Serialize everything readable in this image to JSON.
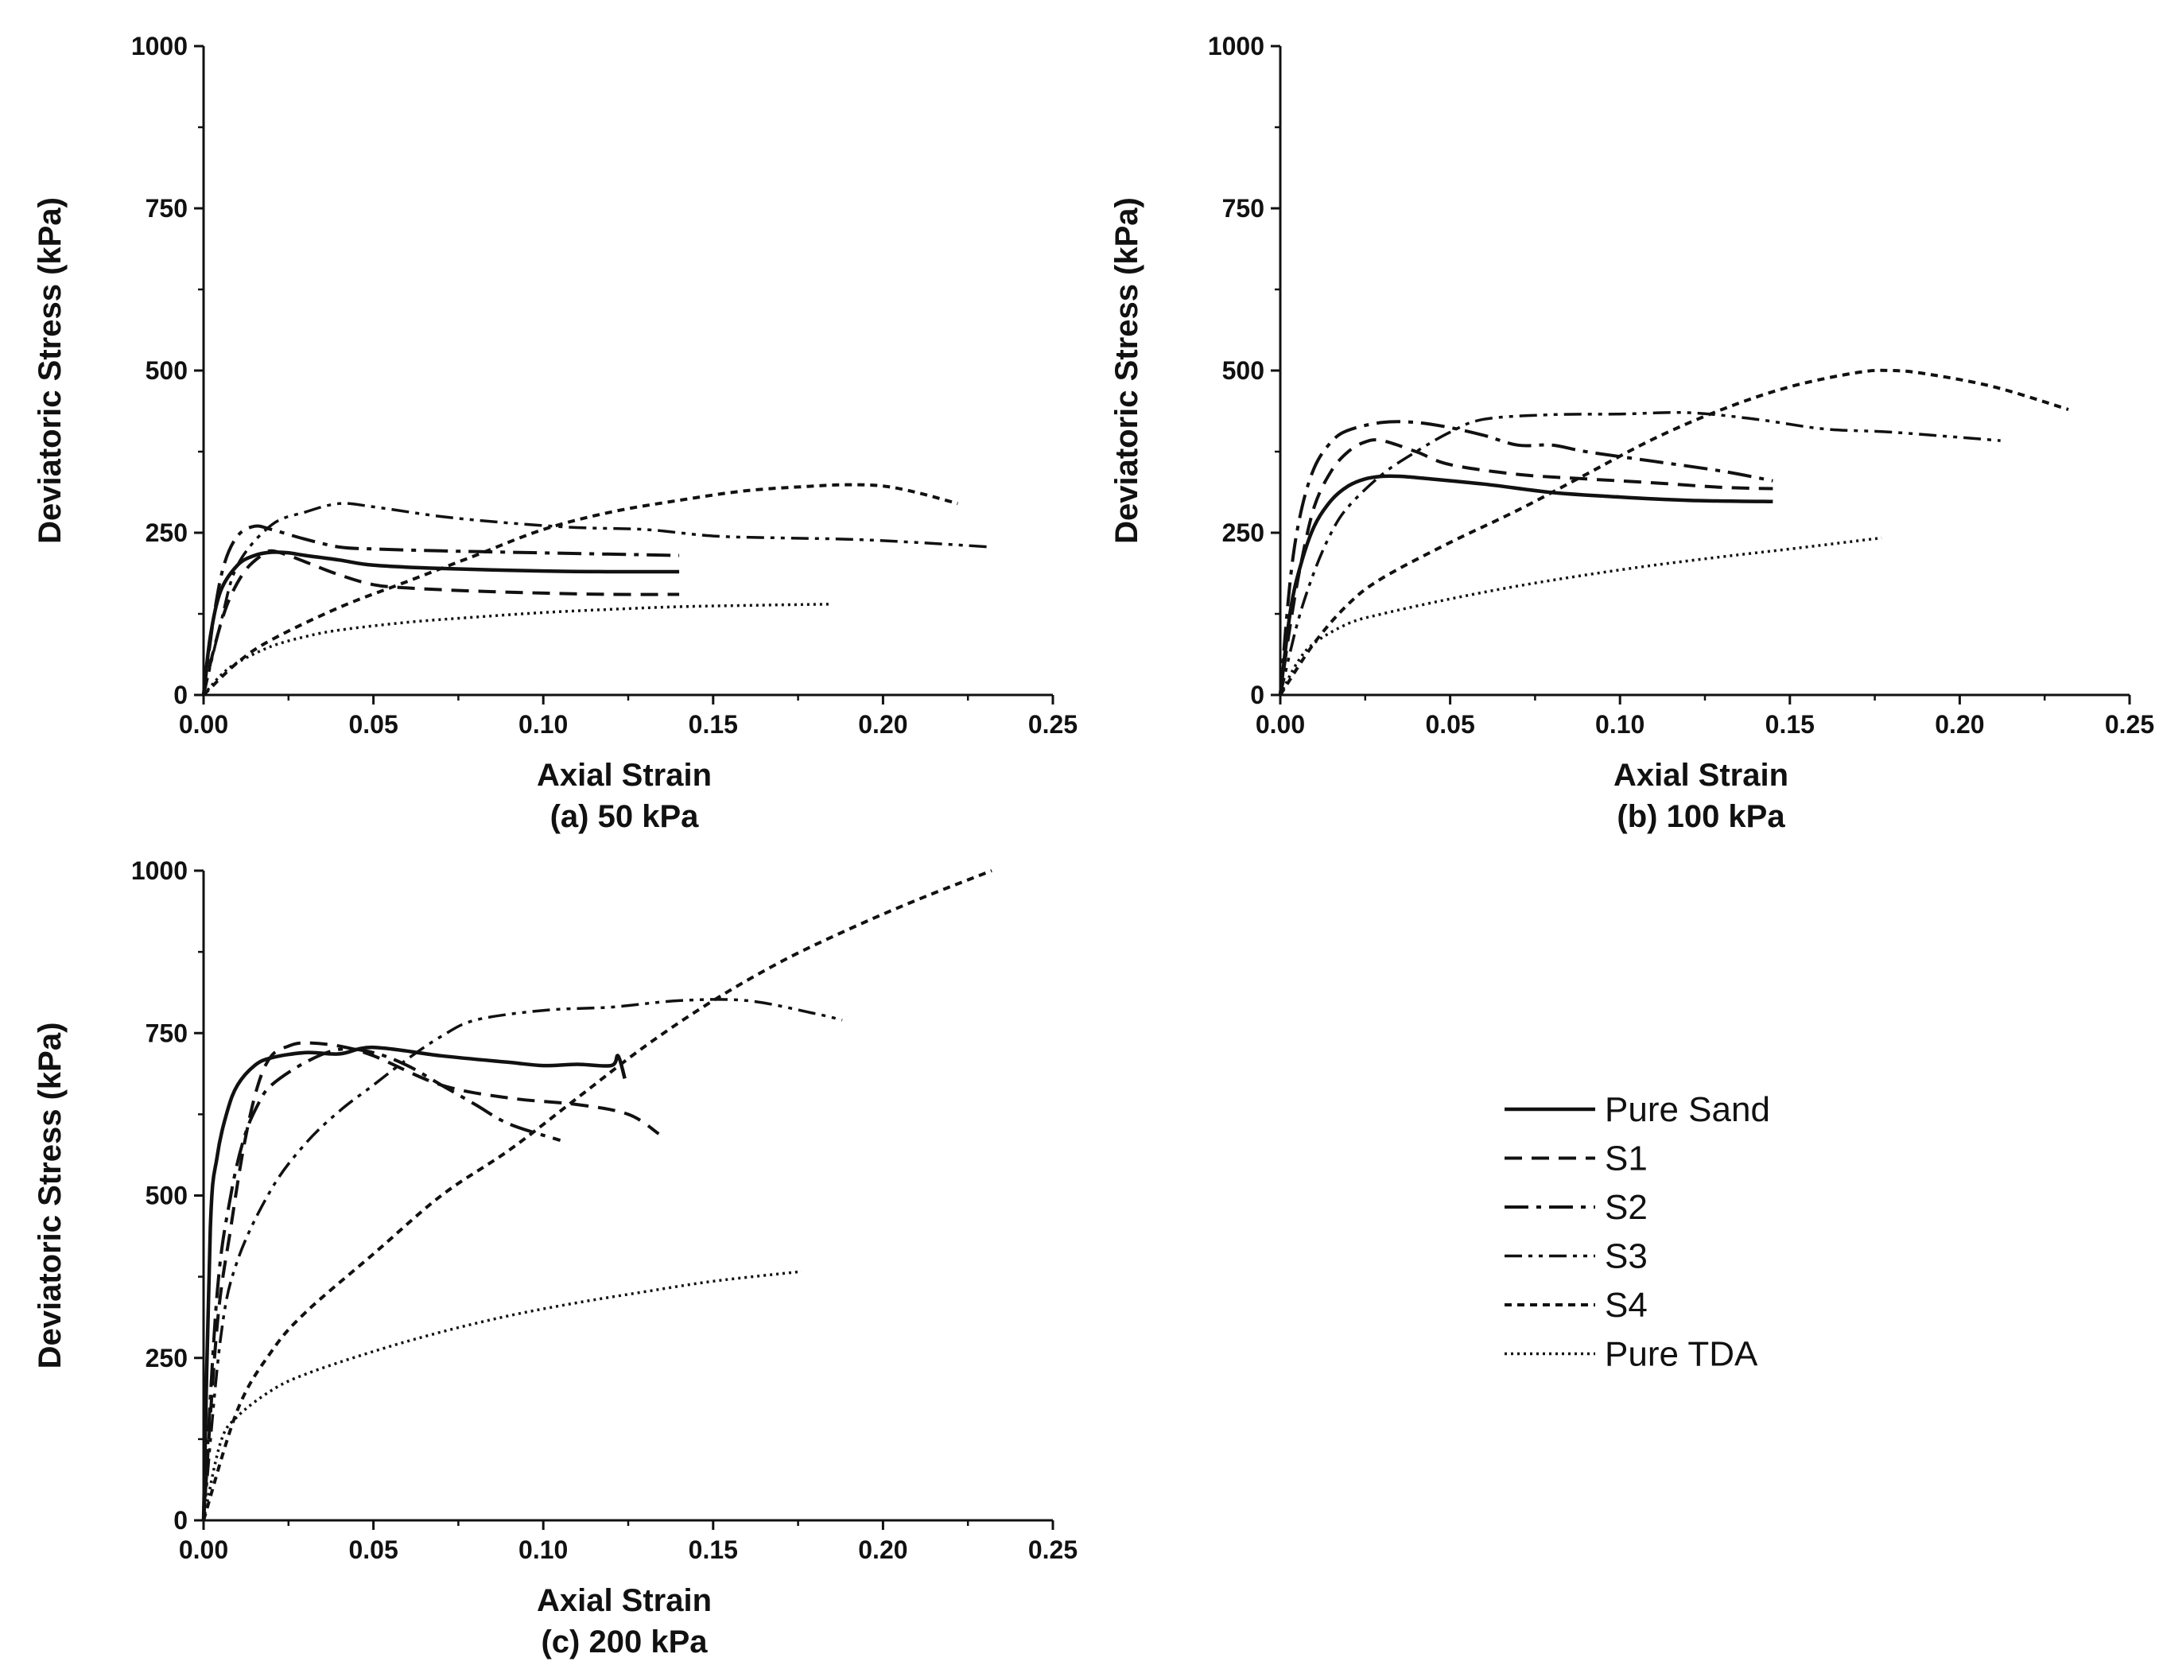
{
  "legend": {
    "entries": [
      {
        "key": "pure_sand",
        "label": "Pure Sand"
      },
      {
        "key": "s1",
        "label": "S1"
      },
      {
        "key": "s2",
        "label": "S2"
      },
      {
        "key": "s3",
        "label": "S3"
      },
      {
        "key": "s4",
        "label": "S4"
      },
      {
        "key": "pure_tda",
        "label": "Pure TDA"
      }
    ]
  },
  "chart_data": [
    {
      "type": "line",
      "caption": "(a) 50 kPa",
      "xlabel": "Axial Strain",
      "ylabel": "Deviatoric Stress (kPa)",
      "xlim": [
        0,
        0.25
      ],
      "ylim": [
        0,
        1000
      ],
      "xticks": [
        "0.00",
        "0.05",
        "0.10",
        "0.15",
        "0.20",
        "0.25"
      ],
      "yticks": [
        "0",
        "250",
        "500",
        "750",
        "1000"
      ],
      "series": [
        {
          "name": "Pure Sand",
          "x": [
            0,
            0.002,
            0.005,
            0.01,
            0.015,
            0.02,
            0.025,
            0.03,
            0.04,
            0.05,
            0.07,
            0.1,
            0.12,
            0.14
          ],
          "y": [
            0,
            90,
            160,
            200,
            215,
            220,
            219,
            215,
            208,
            200,
            195,
            191,
            190,
            190
          ]
        },
        {
          "name": "S1",
          "x": [
            0,
            0.003,
            0.007,
            0.012,
            0.017,
            0.02,
            0.025,
            0.03,
            0.04,
            0.05,
            0.06,
            0.08,
            0.1,
            0.12,
            0.14
          ],
          "y": [
            0,
            70,
            140,
            190,
            215,
            222,
            215,
            205,
            185,
            170,
            165,
            160,
            157,
            155,
            155
          ]
        },
        {
          "name": "S2",
          "x": [
            0,
            0.003,
            0.006,
            0.01,
            0.015,
            0.02,
            0.03,
            0.04,
            0.05,
            0.07,
            0.09,
            0.11,
            0.13,
            0.14
          ],
          "y": [
            0,
            120,
            200,
            245,
            260,
            255,
            240,
            228,
            225,
            222,
            220,
            218,
            216,
            215
          ]
        },
        {
          "name": "S3",
          "x": [
            0,
            0.005,
            0.01,
            0.02,
            0.03,
            0.04,
            0.05,
            0.07,
            0.09,
            0.11,
            0.13,
            0.15,
            0.17,
            0.19,
            0.21,
            0.232
          ],
          "y": [
            0,
            110,
            200,
            262,
            282,
            295,
            290,
            275,
            265,
            258,
            255,
            245,
            242,
            240,
            235,
            228
          ]
        },
        {
          "name": "S4",
          "x": [
            0,
            0.01,
            0.02,
            0.04,
            0.06,
            0.08,
            0.1,
            0.12,
            0.14,
            0.16,
            0.18,
            0.19,
            0.2,
            0.21,
            0.222
          ],
          "y": [
            0,
            50,
            85,
            135,
            175,
            215,
            255,
            282,
            300,
            315,
            322,
            324,
            322,
            312,
            295
          ]
        },
        {
          "name": "Pure TDA",
          "x": [
            0,
            0.005,
            0.01,
            0.02,
            0.03,
            0.04,
            0.06,
            0.08,
            0.1,
            0.12,
            0.14,
            0.16,
            0.185
          ],
          "y": [
            0,
            30,
            50,
            75,
            90,
            100,
            112,
            120,
            127,
            132,
            136,
            138,
            140
          ]
        }
      ]
    },
    {
      "type": "line",
      "caption": "(b) 100 kPa",
      "xlabel": "Axial Strain",
      "ylabel": "Deviatoric Stress (kPa)",
      "xlim": [
        0,
        0.25
      ],
      "ylim": [
        0,
        1000
      ],
      "xticks": [
        "0.00",
        "0.05",
        "0.10",
        "0.15",
        "0.20",
        "0.25"
      ],
      "yticks": [
        "0",
        "250",
        "500",
        "750",
        "1000"
      ],
      "series": [
        {
          "name": "Pure Sand",
          "x": [
            0,
            0.003,
            0.006,
            0.01,
            0.015,
            0.02,
            0.025,
            0.03,
            0.035,
            0.04,
            0.06,
            0.08,
            0.1,
            0.12,
            0.145
          ],
          "y": [
            0,
            130,
            200,
            260,
            300,
            322,
            333,
            337,
            337,
            335,
            325,
            312,
            305,
            300,
            298
          ]
        },
        {
          "name": "S1",
          "x": [
            0,
            0.003,
            0.006,
            0.01,
            0.015,
            0.02,
            0.025,
            0.03,
            0.04,
            0.05,
            0.07,
            0.09,
            0.11,
            0.13,
            0.145
          ],
          "y": [
            0,
            110,
            200,
            290,
            345,
            375,
            390,
            392,
            375,
            355,
            340,
            333,
            327,
            320,
            318
          ]
        },
        {
          "name": "S2",
          "x": [
            0,
            0.003,
            0.006,
            0.01,
            0.015,
            0.02,
            0.03,
            0.04,
            0.05,
            0.06,
            0.07,
            0.08,
            0.09,
            0.11,
            0.13,
            0.145
          ],
          "y": [
            0,
            180,
            280,
            350,
            390,
            408,
            420,
            420,
            412,
            400,
            385,
            385,
            375,
            360,
            345,
            330
          ]
        },
        {
          "name": "S3",
          "x": [
            0,
            0.005,
            0.01,
            0.015,
            0.02,
            0.03,
            0.04,
            0.05,
            0.06,
            0.08,
            0.1,
            0.12,
            0.14,
            0.16,
            0.18,
            0.212
          ],
          "y": [
            0,
            110,
            190,
            250,
            290,
            340,
            375,
            405,
            425,
            432,
            433,
            435,
            425,
            410,
            405,
            392
          ]
        },
        {
          "name": "S4",
          "x": [
            0,
            0.01,
            0.02,
            0.03,
            0.05,
            0.07,
            0.09,
            0.11,
            0.13,
            0.15,
            0.17,
            0.18,
            0.19,
            0.21,
            0.232
          ],
          "y": [
            0,
            80,
            140,
            180,
            235,
            285,
            340,
            395,
            440,
            475,
            497,
            500,
            495,
            475,
            440
          ]
        },
        {
          "name": "Pure TDA",
          "x": [
            0,
            0.005,
            0.01,
            0.02,
            0.03,
            0.05,
            0.07,
            0.09,
            0.11,
            0.13,
            0.15,
            0.177
          ],
          "y": [
            0,
            50,
            80,
            110,
            125,
            148,
            168,
            185,
            200,
            213,
            225,
            242
          ]
        }
      ]
    },
    {
      "type": "line",
      "caption": "(c) 200 kPa",
      "xlabel": "Axial Strain",
      "ylabel": "Deviatoric Stress (kPa)",
      "xlim": [
        0,
        0.25
      ],
      "ylim": [
        0,
        1000
      ],
      "xticks": [
        "0.00",
        "0.05",
        "0.10",
        "0.15",
        "0.20",
        "0.25"
      ],
      "yticks": [
        "0",
        "250",
        "500",
        "750",
        "1000"
      ],
      "series": [
        {
          "name": "Pure Sand",
          "x": [
            0,
            0.002,
            0.004,
            0.007,
            0.01,
            0.015,
            0.02,
            0.03,
            0.04,
            0.05,
            0.07,
            0.09,
            0.1,
            0.11,
            0.12,
            0.122,
            0.124
          ],
          "y": [
            0,
            450,
            560,
            630,
            670,
            700,
            712,
            720,
            718,
            728,
            715,
            705,
            700,
            702,
            700,
            715,
            680
          ]
        },
        {
          "name": "S1",
          "x": [
            0,
            0.004,
            0.008,
            0.012,
            0.016,
            0.02,
            0.025,
            0.03,
            0.04,
            0.05,
            0.07,
            0.09,
            0.11,
            0.125,
            0.134
          ],
          "y": [
            0,
            300,
            450,
            580,
            670,
            715,
            730,
            735,
            730,
            715,
            670,
            650,
            640,
            625,
            595
          ]
        },
        {
          "name": "S2",
          "x": [
            0,
            0.004,
            0.008,
            0.012,
            0.016,
            0.02,
            0.03,
            0.04,
            0.05,
            0.06,
            0.07,
            0.08,
            0.09,
            0.105
          ],
          "y": [
            0,
            350,
            500,
            590,
            640,
            670,
            705,
            725,
            720,
            700,
            670,
            640,
            610,
            585
          ]
        },
        {
          "name": "S3",
          "x": [
            0,
            0.005,
            0.01,
            0.02,
            0.03,
            0.04,
            0.05,
            0.06,
            0.07,
            0.08,
            0.1,
            0.12,
            0.14,
            0.16,
            0.18,
            0.188
          ],
          "y": [
            0,
            280,
            400,
            510,
            580,
            630,
            670,
            710,
            745,
            770,
            785,
            790,
            800,
            800,
            780,
            770
          ]
        },
        {
          "name": "S4",
          "x": [
            0,
            0.01,
            0.02,
            0.03,
            0.05,
            0.07,
            0.09,
            0.11,
            0.13,
            0.15,
            0.17,
            0.19,
            0.21,
            0.232
          ],
          "y": [
            0,
            170,
            260,
            320,
            410,
            500,
            570,
            650,
            730,
            800,
            860,
            910,
            955,
            1000
          ]
        },
        {
          "name": "Pure TDA",
          "x": [
            0,
            0.005,
            0.01,
            0.02,
            0.03,
            0.05,
            0.07,
            0.09,
            0.11,
            0.13,
            0.15,
            0.176
          ],
          "y": [
            0,
            120,
            160,
            200,
            225,
            260,
            290,
            315,
            335,
            352,
            368,
            383
          ]
        }
      ]
    }
  ]
}
